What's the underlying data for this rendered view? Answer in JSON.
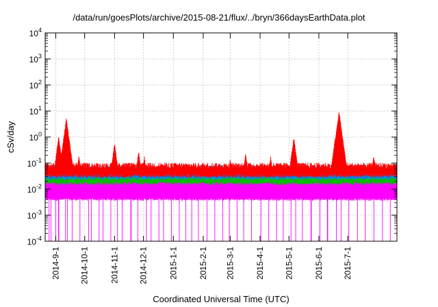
{
  "chart_data": {
    "type": "line",
    "title": "/data/run/goesPlots/archive/2015-08-21/flux/../bryn/366daysEarthData.plot",
    "xlabel": "Coordinated Universal Time (UTC)",
    "ylabel": "cSv/day",
    "yscale": "log",
    "ylim": [
      0.0001,
      10000
    ],
    "xlim": [
      "2014-08-21",
      "2015-08-21"
    ],
    "grid": true,
    "legend": "none",
    "x_ticks": [
      "2014-9-1",
      "2014-10-1",
      "2014-11-1",
      "2014-12-1",
      "2015-1-1",
      "2015-2-1",
      "2015-3-1",
      "2015-4-1",
      "2015-5-1",
      "2015-6-1",
      "2015-7-1"
    ],
    "y_ticks": [
      {
        "base": "10",
        "exp": "-4"
      },
      {
        "base": "10",
        "exp": "-3"
      },
      {
        "base": "10",
        "exp": "-2"
      },
      {
        "base": "10",
        "exp": "-1"
      },
      {
        "base": "10",
        "exp": "0"
      },
      {
        "base": "10",
        "exp": "1"
      },
      {
        "base": "10",
        "exp": "2"
      },
      {
        "base": "10",
        "exp": "3"
      },
      {
        "base": "10",
        "exp": "4"
      }
    ],
    "series": [
      {
        "color": "#ff0000",
        "baseline": 0.085,
        "peaks": [
          [
            "2014-09-04",
            1.1
          ],
          [
            "2014-09-10",
            0.9
          ],
          [
            "2014-09-12",
            5.5
          ],
          [
            "2014-09-25",
            0.2
          ],
          [
            "2014-11-01",
            0.6
          ],
          [
            "2014-11-26",
            0.3
          ],
          [
            "2014-12-02",
            0.18
          ],
          [
            "2015-03-01",
            0.15
          ],
          [
            "2015-03-17",
            0.25
          ],
          [
            "2015-04-12",
            0.18
          ],
          [
            "2015-05-06",
            1.0
          ],
          [
            "2015-06-18",
            1.0
          ],
          [
            "2015-06-22",
            10.0
          ],
          [
            "2015-06-25",
            0.6
          ],
          [
            "2015-07-28",
            0.2
          ]
        ]
      },
      {
        "color": "#0080ff",
        "baseline": 0.07,
        "peaks": [
          [
            "2014-09-04",
            0.75
          ],
          [
            "2014-09-10",
            0.6
          ],
          [
            "2014-09-12",
            3.5
          ],
          [
            "2014-09-25",
            0.15
          ],
          [
            "2014-11-01",
            0.35
          ],
          [
            "2014-11-26",
            0.2
          ],
          [
            "2015-05-06",
            0.5
          ],
          [
            "2015-06-18",
            0.5
          ],
          [
            "2015-06-22",
            2.5
          ],
          [
            "2015-06-25",
            0.35
          ]
        ]
      },
      {
        "color": "#00c000",
        "baseline": 0.045,
        "peaks": [
          [
            "2014-09-04",
            0.3
          ],
          [
            "2014-09-12",
            1.0
          ],
          [
            "2015-06-22",
            0.6
          ]
        ]
      },
      {
        "color": "#ff00ff",
        "range": [
          0.004,
          0.03
        ],
        "dips": [
          "2014-08-25",
          "2014-08-27",
          "2014-09-01",
          "2014-09-04",
          "2014-09-11",
          "2014-09-13",
          "2014-09-18",
          "2014-09-26",
          "2014-10-05",
          "2014-10-08",
          "2014-10-16",
          "2014-10-20",
          "2014-10-28",
          "2014-11-04",
          "2014-11-09",
          "2014-11-18",
          "2014-11-25",
          "2014-12-04",
          "2014-12-09",
          "2014-12-17",
          "2014-12-22",
          "2014-12-30",
          "2015-01-07",
          "2015-01-14",
          "2015-01-20",
          "2015-01-27",
          "2015-02-05",
          "2015-02-13",
          "2015-02-21",
          "2015-02-28",
          "2015-03-08",
          "2015-03-15",
          "2015-03-23",
          "2015-04-02",
          "2015-04-10",
          "2015-04-18",
          "2015-04-25",
          "2015-05-03",
          "2015-05-08",
          "2015-05-15",
          "2015-05-24",
          "2015-06-02",
          "2015-06-10",
          "2015-06-19",
          "2015-06-24",
          "2015-07-02",
          "2015-07-11",
          "2015-07-19",
          "2015-07-28",
          "2015-08-06",
          "2015-08-14"
        ]
      }
    ]
  }
}
